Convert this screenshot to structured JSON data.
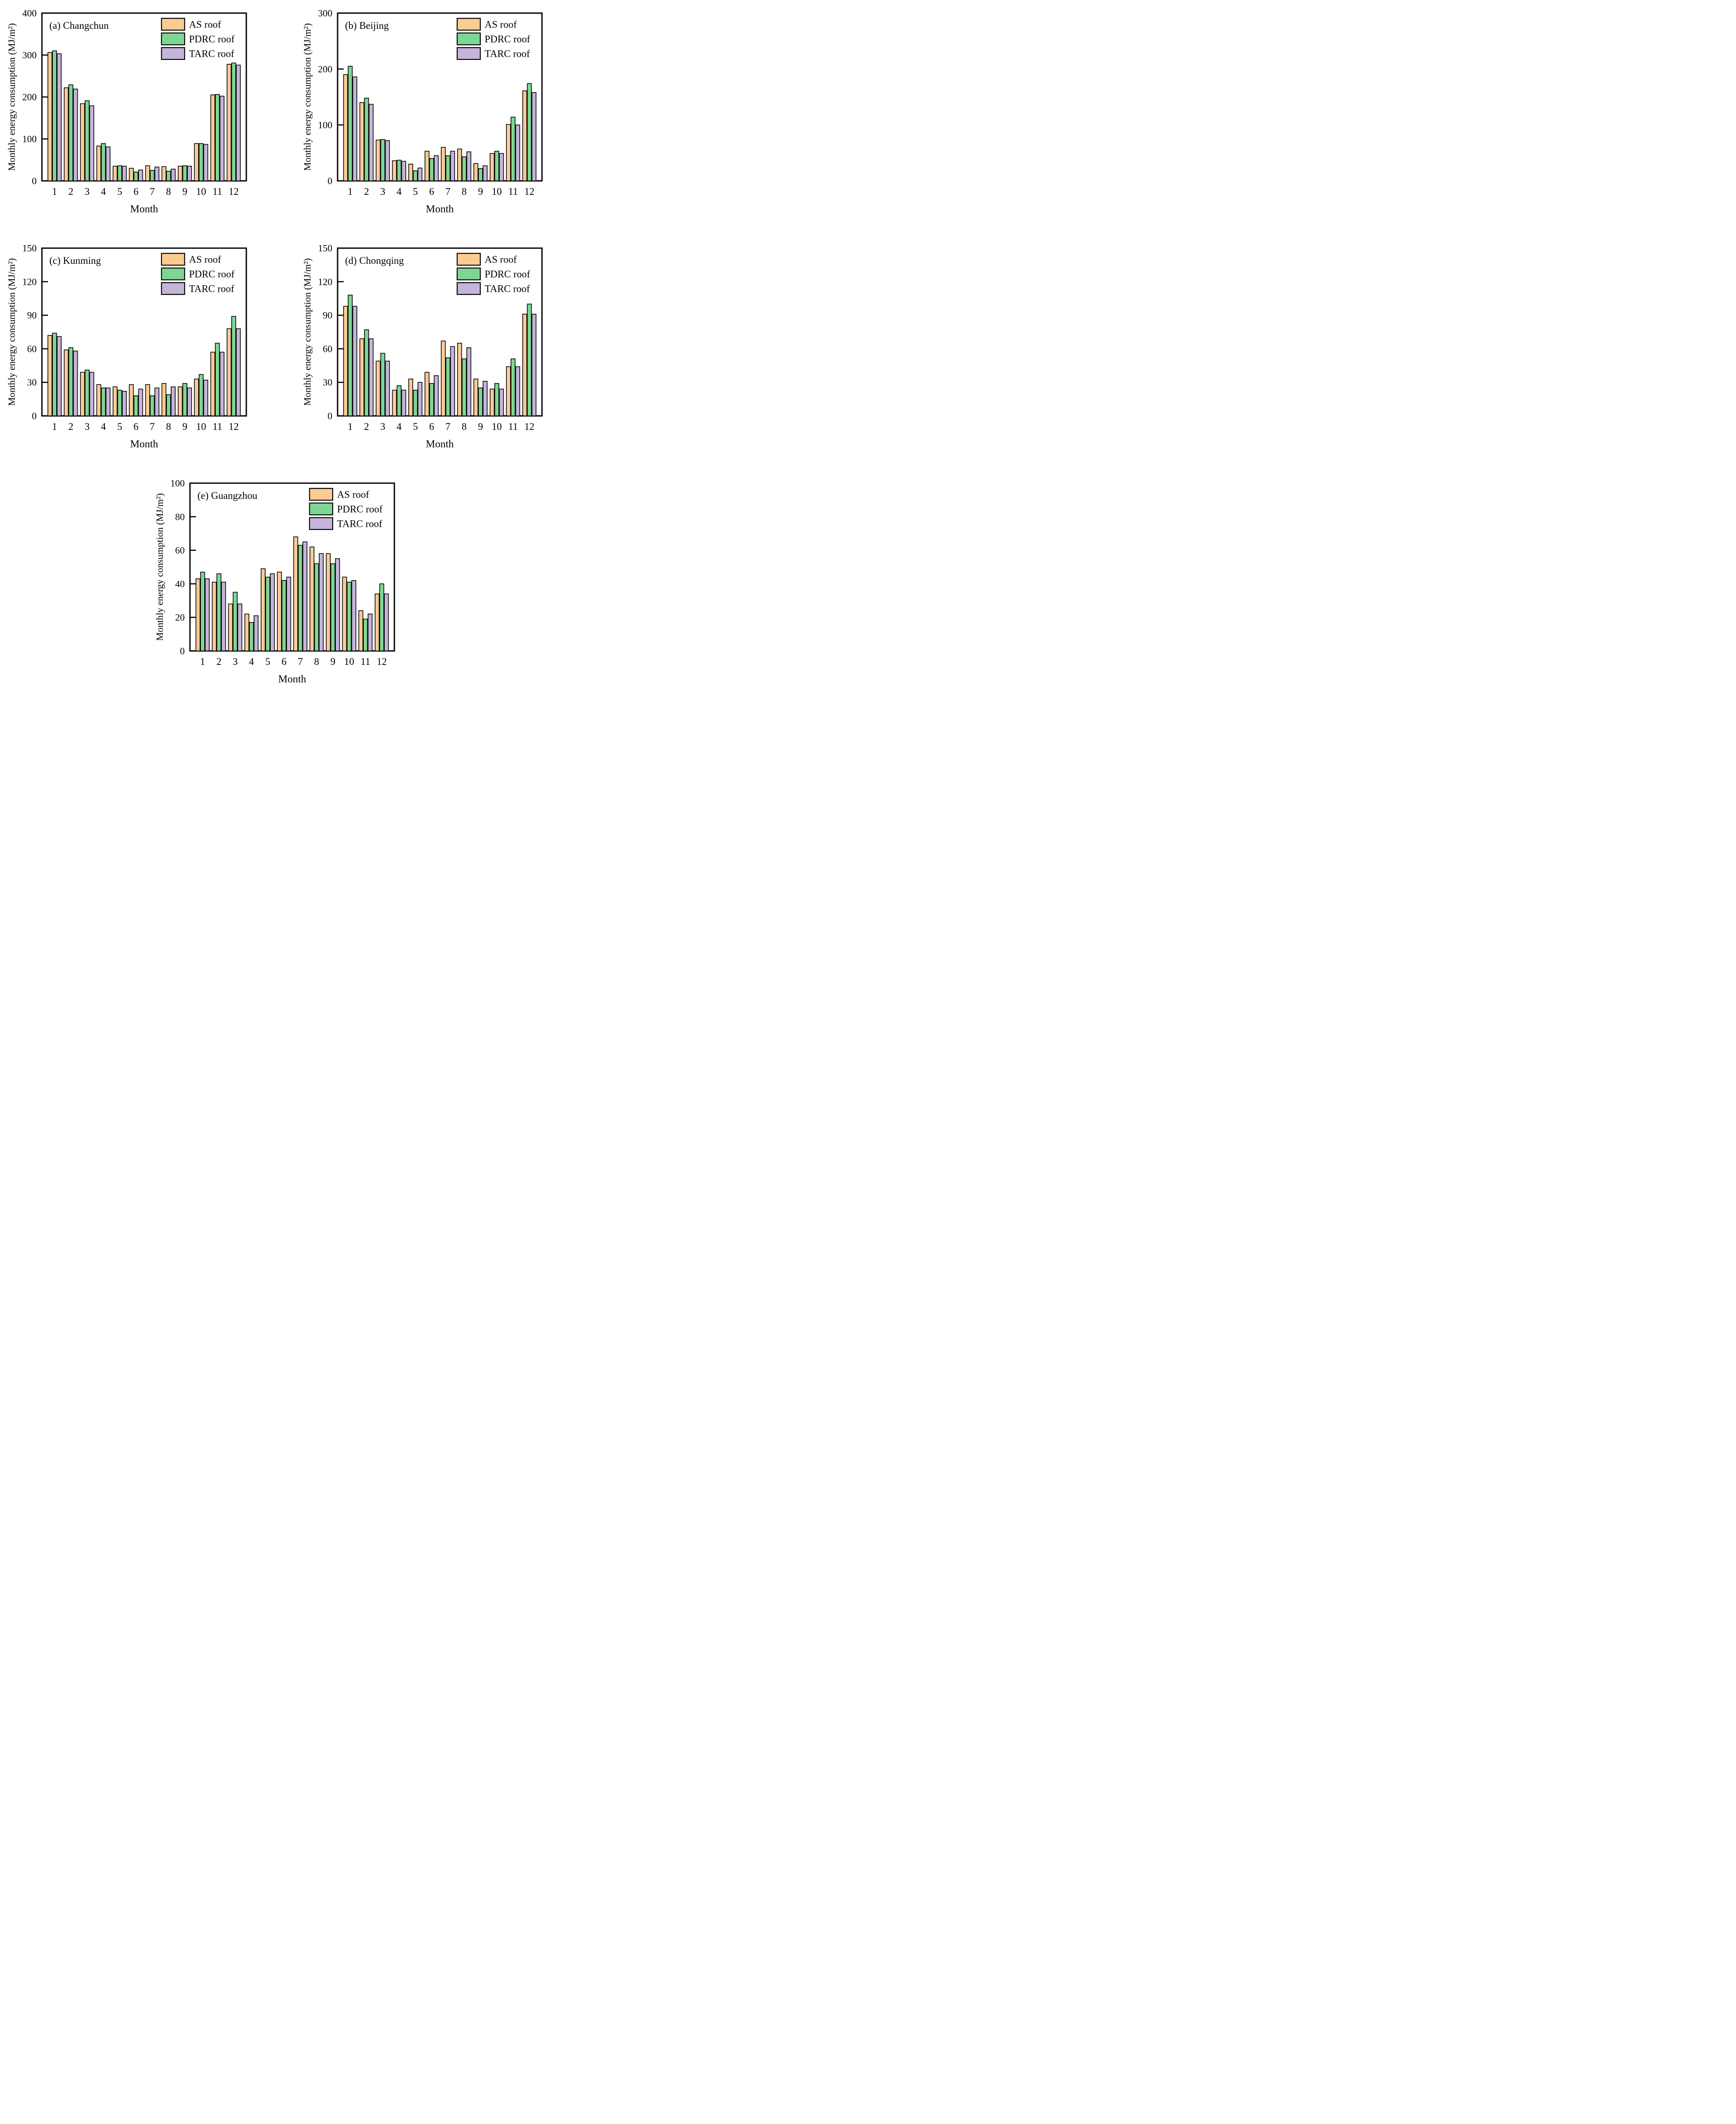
{
  "page": {
    "background": "#ffffff"
  },
  "legend": {
    "labels": [
      "AS roof",
      "PDRC roof",
      "TARC roof"
    ],
    "position": "inside-top-right"
  },
  "colors": {
    "series": [
      "#FBCB92",
      "#7ED695",
      "#C5B5DA"
    ],
    "outline": "#000000",
    "text": "#000000"
  },
  "axes": {
    "xlabel": "Month",
    "ylabel": "Monthly energy consumption (MJ/m²)",
    "categories": [
      "1",
      "2",
      "3",
      "4",
      "5",
      "6",
      "7",
      "8",
      "9",
      "10",
      "11",
      "12"
    ],
    "grid": "off",
    "ticks": "inward"
  },
  "chart_data": [
    {
      "key": "a",
      "type": "bar",
      "title": "(a) Changchun",
      "xlabel": "Month",
      "ylabel": "Monthly energy consumption (MJ/m²)",
      "ylim": [
        0,
        400
      ],
      "yticks": [
        0,
        100,
        200,
        300,
        400
      ],
      "categories": [
        "1",
        "2",
        "3",
        "4",
        "5",
        "6",
        "7",
        "8",
        "9",
        "10",
        "11",
        "12"
      ],
      "legend": [
        "AS roof",
        "PDRC roof",
        "TARC roof"
      ],
      "series": [
        {
          "name": "AS roof",
          "values": [
            306,
            222,
            184,
            83,
            35,
            30,
            36,
            34,
            35,
            89,
            205,
            278
          ]
        },
        {
          "name": "PDRC roof",
          "values": [
            310,
            229,
            191,
            89,
            36,
            21,
            25,
            23,
            36,
            89,
            206,
            281
          ]
        },
        {
          "name": "TARC roof",
          "values": [
            303,
            219,
            179,
            81,
            35,
            26,
            33,
            28,
            35,
            87,
            202,
            276
          ]
        }
      ]
    },
    {
      "key": "b",
      "type": "bar",
      "title": "(b) Beijing",
      "xlabel": "Month",
      "ylabel": "Monthly energy consumption (MJ/m²)",
      "ylim": [
        0,
        300
      ],
      "yticks": [
        0,
        100,
        200,
        300
      ],
      "categories": [
        "1",
        "2",
        "3",
        "4",
        "5",
        "6",
        "7",
        "8",
        "9",
        "10",
        "11",
        "12"
      ],
      "legend": [
        "AS roof",
        "PDRC roof",
        "TARC roof"
      ],
      "series": [
        {
          "name": "AS roof",
          "values": [
            190,
            140,
            73,
            36,
            30,
            53,
            60,
            57,
            31,
            49,
            101,
            161
          ]
        },
        {
          "name": "PDRC roof",
          "values": [
            205,
            148,
            74,
            37,
            18,
            40,
            45,
            43,
            22,
            53,
            114,
            174
          ]
        },
        {
          "name": "TARC roof",
          "values": [
            186,
            137,
            72,
            35,
            23,
            45,
            53,
            52,
            27,
            49,
            100,
            158
          ]
        }
      ]
    },
    {
      "key": "c",
      "type": "bar",
      "title": "(c) Kunming",
      "xlabel": "Month",
      "ylabel": "Monthly energy consumption (MJ/m²)",
      "ylim": [
        0,
        150
      ],
      "yticks": [
        0,
        30,
        60,
        90,
        120,
        150
      ],
      "categories": [
        "1",
        "2",
        "3",
        "4",
        "5",
        "6",
        "7",
        "8",
        "9",
        "10",
        "11",
        "12"
      ],
      "legend": [
        "AS roof",
        "PDRC roof",
        "TARC roof"
      ],
      "series": [
        {
          "name": "AS roof",
          "values": [
            72,
            59,
            39,
            28,
            26,
            28,
            28,
            29,
            26,
            33,
            57,
            78
          ]
        },
        {
          "name": "PDRC roof",
          "values": [
            74,
            61,
            41,
            25,
            23,
            18,
            18,
            19,
            29,
            37,
            65,
            89
          ]
        },
        {
          "name": "TARC roof",
          "values": [
            71,
            58,
            39,
            25,
            22,
            24,
            25,
            26,
            25,
            32,
            57,
            78
          ]
        }
      ]
    },
    {
      "key": "d",
      "type": "bar",
      "title": "(d) Chongqing",
      "xlabel": "Month",
      "ylabel": "Monthly energy consumption (MJ/m²)",
      "ylim": [
        0,
        150
      ],
      "yticks": [
        0,
        30,
        60,
        90,
        120,
        150
      ],
      "categories": [
        "1",
        "2",
        "3",
        "4",
        "5",
        "6",
        "7",
        "8",
        "9",
        "10",
        "11",
        "12"
      ],
      "legend": [
        "AS roof",
        "PDRC roof",
        "TARC roof"
      ],
      "series": [
        {
          "name": "AS roof",
          "values": [
            98,
            69,
            49,
            23,
            33,
            39,
            67,
            65,
            33,
            24,
            44,
            91
          ]
        },
        {
          "name": "PDRC roof",
          "values": [
            108,
            77,
            56,
            27,
            23,
            29,
            52,
            51,
            25,
            29,
            51,
            100
          ]
        },
        {
          "name": "TARC roof",
          "values": [
            98,
            69,
            49,
            23,
            30,
            36,
            62,
            61,
            31,
            24,
            44,
            91
          ]
        }
      ]
    },
    {
      "key": "e",
      "type": "bar",
      "title": "(e) Guangzhou",
      "xlabel": "Month",
      "ylabel": "Monthly energy consumption (MJ/m²)",
      "ylim": [
        0,
        100
      ],
      "yticks": [
        0,
        20,
        40,
        60,
        80,
        100
      ],
      "categories": [
        "1",
        "2",
        "3",
        "4",
        "5",
        "6",
        "7",
        "8",
        "9",
        "10",
        "11",
        "12"
      ],
      "legend": [
        "AS roof",
        "PDRC roof",
        "TARC roof"
      ],
      "series": [
        {
          "name": "AS roof",
          "values": [
            43,
            41,
            28,
            22,
            49,
            47,
            68,
            62,
            58,
            44,
            24,
            34
          ]
        },
        {
          "name": "PDRC roof",
          "values": [
            47,
            46,
            35,
            17,
            44,
            42,
            63,
            52,
            52,
            41,
            19,
            40
          ]
        },
        {
          "name": "TARC roof",
          "values": [
            43,
            41,
            28,
            21,
            46,
            44,
            65,
            58,
            55,
            42,
            22,
            34
          ]
        }
      ]
    }
  ]
}
